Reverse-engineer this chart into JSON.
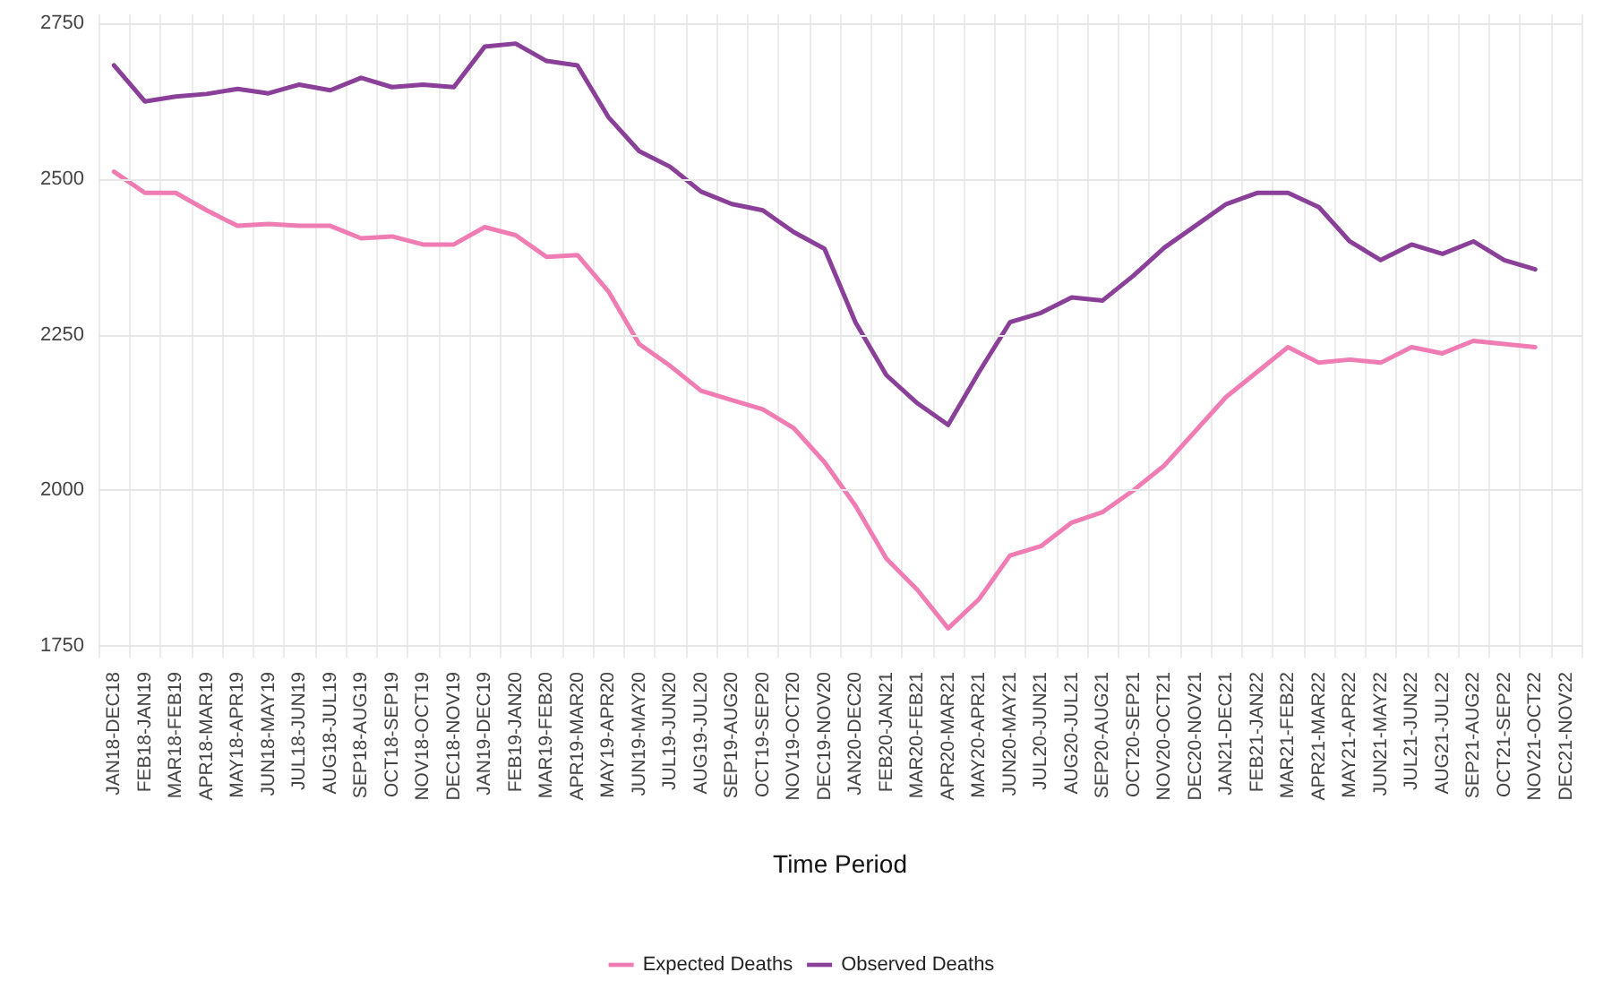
{
  "chart_data": {
    "type": "line",
    "xlabel": "Time Period",
    "categories": [
      "JAN18-DEC18",
      "FEB18-JAN19",
      "MAR18-FEB19",
      "APR18-MAR19",
      "MAY18-APR19",
      "JUN18-MAY19",
      "JUL18-JUN19",
      "AUG18-JUL19",
      "SEP18-AUG19",
      "OCT18-SEP19",
      "NOV18-OCT19",
      "DEC18-NOV19",
      "JAN19-DEC19",
      "FEB19-JAN20",
      "MAR19-FEB20",
      "APR19-MAR20",
      "MAY19-APR20",
      "JUN19-MAY20",
      "JUL19-JUN20",
      "AUG19-JUL20",
      "SEP19-AUG20",
      "OCT19-SEP20",
      "NOV19-OCT20",
      "DEC19-NOV20",
      "JAN20-DEC20",
      "FEB20-JAN21",
      "MAR20-FEB21",
      "APR20-MAR21",
      "MAY20-APR21",
      "JUN20-MAY21",
      "JUL20-JUN21",
      "AUG20-JUL21",
      "SEP20-AUG21",
      "OCT20-SEP21",
      "NOV20-OCT21",
      "DEC20-NOV21",
      "JAN21-DEC21",
      "FEB21-JAN22",
      "MAR21-FEB22",
      "APR21-MAR22",
      "MAY21-APR22",
      "JUN21-MAY22",
      "JUL21-JUN22",
      "AUG21-JUL22",
      "SEP21-AUG22",
      "OCT21-SEP22",
      "NOV21-OCT22",
      "DEC21-NOV22"
    ],
    "series": [
      {
        "name": "Expected Deaths",
        "color": "#f07cb4",
        "values": [
          2512,
          2478,
          2478,
          2450,
          2425,
          2428,
          2425,
          2425,
          2405,
          2408,
          2395,
          2395,
          2423,
          2410,
          2375,
          2378,
          2320,
          2235,
          2200,
          2160,
          2145,
          2130,
          2100,
          2045,
          1975,
          1890,
          1840,
          1778,
          1825,
          1895,
          1910,
          1948,
          1965,
          2000,
          2040,
          2095,
          2150,
          2190,
          2230,
          2205,
          2210,
          2205,
          2230,
          2220,
          2240,
          2235,
          2230,
          null
        ]
      },
      {
        "name": "Observed Deaths",
        "color": "#8a3f98",
        "values": [
          2683,
          2625,
          2633,
          2637,
          2645,
          2638,
          2652,
          2643,
          2663,
          2648,
          2652,
          2648,
          2713,
          2718,
          2690,
          2683,
          2600,
          2545,
          2520,
          2480,
          2460,
          2450,
          2415,
          2388,
          2270,
          2185,
          2140,
          2105,
          2190,
          2270,
          2285,
          2310,
          2305,
          2345,
          2390,
          2425,
          2460,
          2478,
          2478,
          2455,
          2400,
          2370,
          2395,
          2380,
          2400,
          2370,
          2355,
          null
        ]
      }
    ],
    "ylim": [
      1731,
      2765
    ],
    "yticks": [
      1750,
      2000,
      2250,
      2500,
      2750
    ],
    "grid": true,
    "legend": "bottom",
    "marker": "none",
    "line_style": "solid"
  }
}
